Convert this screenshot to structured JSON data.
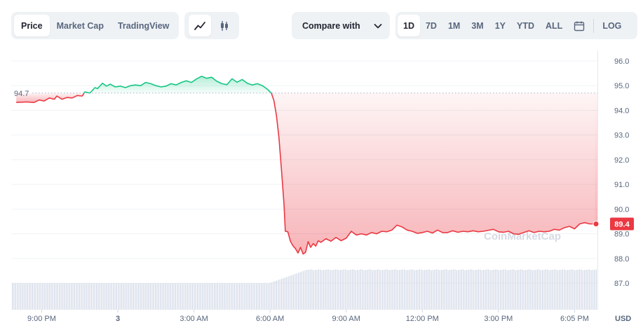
{
  "toolbar": {
    "views": [
      {
        "label": "Price",
        "active": true
      },
      {
        "label": "Market Cap",
        "active": false
      },
      {
        "label": "TradingView",
        "active": false
      }
    ],
    "chart_types": [
      {
        "icon": "line-chart-icon",
        "active": true
      },
      {
        "icon": "candlestick-icon",
        "active": false
      }
    ],
    "compare_label": "Compare with",
    "ranges": [
      {
        "label": "1D",
        "active": true
      },
      {
        "label": "7D",
        "active": false
      },
      {
        "label": "1M",
        "active": false
      },
      {
        "label": "3M",
        "active": false
      },
      {
        "label": "1Y",
        "active": false
      },
      {
        "label": "YTD",
        "active": false
      },
      {
        "label": "ALL",
        "active": false
      }
    ],
    "log_label": "LOG"
  },
  "colors": {
    "up": "#16c784",
    "down": "#ea3943",
    "grid": "#eff2f5",
    "axis_text": "#58667e",
    "volume": "#cfd6e4"
  },
  "watermark": "CoinMarketCap",
  "chart_data": {
    "type": "line",
    "y_unit": "USD",
    "ylim": [
      86.5,
      96.4
    ],
    "y_ticks": [
      87.0,
      88.0,
      89.0,
      90.0,
      91.0,
      92.0,
      93.0,
      94.0,
      95.0,
      96.0
    ],
    "y_tick_labels": [
      "87.0",
      "88.0",
      "89.0",
      "90.0",
      "91.0",
      "92.0",
      "93.0",
      "94.0",
      "95.0",
      "96.0"
    ],
    "x_range_hours": [
      -4.2,
      18.9
    ],
    "x_ticks": [
      {
        "h": -3,
        "label": "9:00 PM"
      },
      {
        "h": 0,
        "label": "3"
      },
      {
        "h": 3,
        "label": "3:00 AM"
      },
      {
        "h": 6,
        "label": "6:00 AM"
      },
      {
        "h": 9,
        "label": "9:00 AM"
      },
      {
        "h": 12,
        "label": "12:00 PM"
      },
      {
        "h": 15,
        "label": "3:00 PM"
      },
      {
        "h": 18,
        "label": "6:05 PM"
      }
    ],
    "reference": {
      "value": 94.7,
      "label": "94.7"
    },
    "last": {
      "value": 89.4,
      "label": "89.4"
    },
    "grid": true,
    "series": [
      {
        "points": [
          [
            -4.0,
            94.32
          ],
          [
            -3.6,
            94.34
          ],
          [
            -3.3,
            94.32
          ],
          [
            -3.1,
            94.42
          ],
          [
            -2.9,
            94.38
          ],
          [
            -2.7,
            94.5
          ],
          [
            -2.5,
            94.45
          ],
          [
            -2.4,
            94.58
          ],
          [
            -2.2,
            94.45
          ],
          [
            -2.0,
            94.52
          ],
          [
            -1.8,
            94.5
          ],
          [
            -1.6,
            94.6
          ],
          [
            -1.4,
            94.58
          ],
          [
            -1.3,
            94.75
          ],
          [
            -1.1,
            94.7
          ],
          [
            -0.9,
            94.92
          ],
          [
            -0.8,
            94.88
          ],
          [
            -0.6,
            95.1
          ],
          [
            -0.45,
            94.98
          ],
          [
            -0.3,
            95.06
          ],
          [
            -0.1,
            94.95
          ],
          [
            0.1,
            94.98
          ],
          [
            0.3,
            94.92
          ],
          [
            0.5,
            95.0
          ],
          [
            0.7,
            95.03
          ],
          [
            0.9,
            95.0
          ],
          [
            1.1,
            95.13
          ],
          [
            1.3,
            95.08
          ],
          [
            1.5,
            95.0
          ],
          [
            1.7,
            94.95
          ],
          [
            1.9,
            94.98
          ],
          [
            2.1,
            95.08
          ],
          [
            2.3,
            95.03
          ],
          [
            2.5,
            95.13
          ],
          [
            2.7,
            95.2
          ],
          [
            2.9,
            95.13
          ],
          [
            3.1,
            95.27
          ],
          [
            3.3,
            95.38
          ],
          [
            3.5,
            95.3
          ],
          [
            3.7,
            95.34
          ],
          [
            3.9,
            95.18
          ],
          [
            4.1,
            95.08
          ],
          [
            4.3,
            95.04
          ],
          [
            4.5,
            95.28
          ],
          [
            4.7,
            95.14
          ],
          [
            4.9,
            95.25
          ],
          [
            5.1,
            95.1
          ],
          [
            5.3,
            95.03
          ],
          [
            5.5,
            95.08
          ],
          [
            5.7,
            95.0
          ],
          [
            5.9,
            94.85
          ],
          [
            6.05,
            94.7
          ],
          [
            6.15,
            94.4
          ],
          [
            6.25,
            93.8
          ],
          [
            6.35,
            92.9
          ],
          [
            6.45,
            91.6
          ],
          [
            6.55,
            90.2
          ],
          [
            6.6,
            89.1
          ],
          [
            6.7,
            89.08
          ],
          [
            6.8,
            88.7
          ],
          [
            6.9,
            88.52
          ],
          [
            7.0,
            88.4
          ],
          [
            7.1,
            88.22
          ],
          [
            7.2,
            88.45
          ],
          [
            7.3,
            88.18
          ],
          [
            7.4,
            88.25
          ],
          [
            7.5,
            88.68
          ],
          [
            7.6,
            88.45
          ],
          [
            7.7,
            88.6
          ],
          [
            7.8,
            88.5
          ],
          [
            7.9,
            88.72
          ],
          [
            8.0,
            88.65
          ],
          [
            8.2,
            88.8
          ],
          [
            8.4,
            88.7
          ],
          [
            8.6,
            88.85
          ],
          [
            8.8,
            88.72
          ],
          [
            9.0,
            88.82
          ],
          [
            9.2,
            89.1
          ],
          [
            9.4,
            88.95
          ],
          [
            9.6,
            89.0
          ],
          [
            9.8,
            88.95
          ],
          [
            10.0,
            89.05
          ],
          [
            10.2,
            89.0
          ],
          [
            10.4,
            89.1
          ],
          [
            10.6,
            89.08
          ],
          [
            10.8,
            89.15
          ],
          [
            11.0,
            89.35
          ],
          [
            11.2,
            89.28
          ],
          [
            11.4,
            89.15
          ],
          [
            11.6,
            89.1
          ],
          [
            11.8,
            89.02
          ],
          [
            12.0,
            89.05
          ],
          [
            12.2,
            89.1
          ],
          [
            12.4,
            89.03
          ],
          [
            12.6,
            89.15
          ],
          [
            12.8,
            89.05
          ],
          [
            13.0,
            89.05
          ],
          [
            13.2,
            89.12
          ],
          [
            13.4,
            89.06
          ],
          [
            13.6,
            89.1
          ],
          [
            13.8,
            89.08
          ],
          [
            14.0,
            89.12
          ],
          [
            14.2,
            89.08
          ],
          [
            14.4,
            89.1
          ],
          [
            14.6,
            89.14
          ],
          [
            14.8,
            89.18
          ],
          [
            15.0,
            89.08
          ],
          [
            15.2,
            89.06
          ],
          [
            15.4,
            89.1
          ],
          [
            15.6,
            89.0
          ],
          [
            15.8,
            88.98
          ],
          [
            16.0,
            89.05
          ],
          [
            16.2,
            89.12
          ],
          [
            16.4,
            89.05
          ],
          [
            16.6,
            89.1
          ],
          [
            16.8,
            89.08
          ],
          [
            17.0,
            89.1
          ],
          [
            17.2,
            89.18
          ],
          [
            17.4,
            89.15
          ],
          [
            17.6,
            89.25
          ],
          [
            17.8,
            89.3
          ],
          [
            18.0,
            89.2
          ],
          [
            18.2,
            89.4
          ],
          [
            18.4,
            89.45
          ],
          [
            18.6,
            89.4
          ],
          [
            18.8,
            89.4
          ]
        ]
      }
    ]
  }
}
